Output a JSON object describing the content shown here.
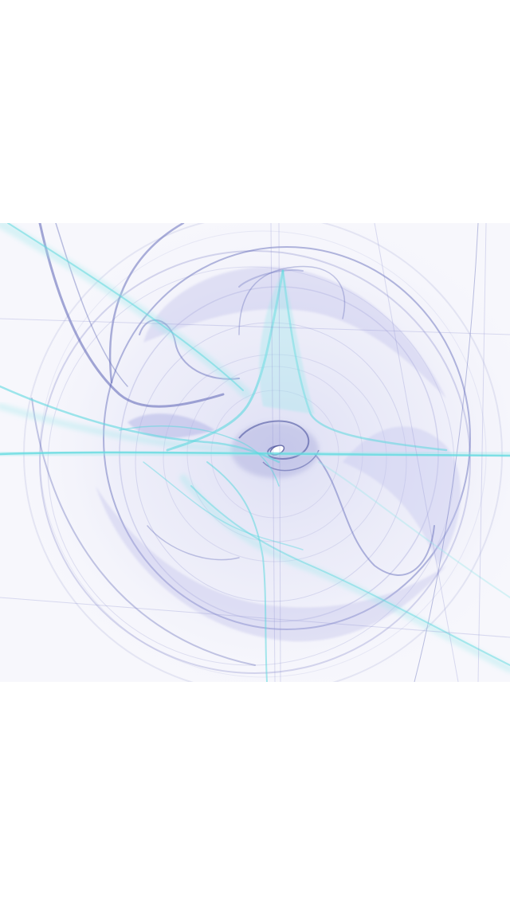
{
  "image": {
    "kind": "fractal-flame",
    "palette": {
      "background": "#ffffff",
      "canvas": "#f7f7fc",
      "lavender": "#8f93cf",
      "indigo": "#5b63b5",
      "cyan": "#5fd9df",
      "aqua": "#9fe9ec"
    }
  }
}
